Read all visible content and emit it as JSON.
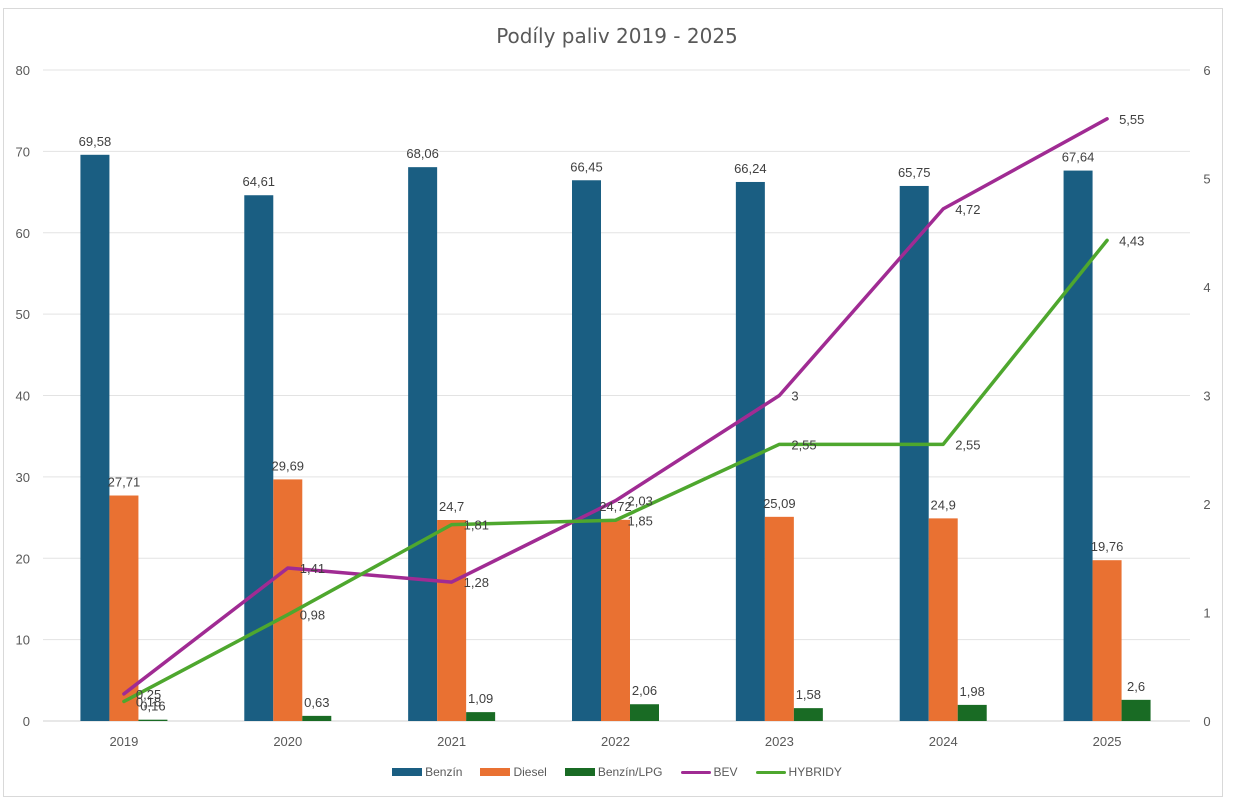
{
  "chart_data": {
    "type": "bar",
    "title": "Podíly paliv 2019 - 2025",
    "xlabel": "",
    "ylabel": "",
    "categories": [
      "2019",
      "2020",
      "2021",
      "2022",
      "2023",
      "2024",
      "2025"
    ],
    "y_left": {
      "min": 0,
      "max": 80,
      "ticks": [
        "0",
        "10",
        "20",
        "30",
        "40",
        "50",
        "60",
        "70",
        "80"
      ]
    },
    "y_right": {
      "min": 0,
      "max": 6,
      "ticks": [
        "0",
        "1",
        "2",
        "3",
        "4",
        "5",
        "6"
      ]
    },
    "grid": true,
    "legend_position": "bottom",
    "series": [
      {
        "name": "Benzín",
        "kind": "bar",
        "axis": "left",
        "color": "#1a5e82",
        "values": [
          69.58,
          64.61,
          68.06,
          66.45,
          66.24,
          65.75,
          67.64
        ],
        "labels": [
          "69,58",
          "64,61",
          "68,06",
          "66,45",
          "66,24",
          "65,75",
          "67,64"
        ]
      },
      {
        "name": "Diesel",
        "kind": "bar",
        "axis": "left",
        "color": "#e97132",
        "values": [
          27.71,
          29.69,
          24.7,
          24.72,
          25.09,
          24.9,
          19.76
        ],
        "labels": [
          "27,71",
          "29,69",
          "24,7",
          "24,72",
          "25,09",
          "24,9",
          "19,76"
        ]
      },
      {
        "name": "Benzín/LPG",
        "kind": "bar",
        "axis": "left",
        "color": "#196b24",
        "values": [
          0.16,
          0.63,
          1.09,
          2.06,
          1.58,
          1.98,
          2.6
        ],
        "labels": [
          "0,16",
          "0,63",
          "1,09",
          "2,06",
          "1,58",
          "1,98",
          "2,6"
        ]
      },
      {
        "name": "BEV",
        "kind": "line",
        "axis": "right",
        "color": "#a02b93",
        "values": [
          0.25,
          1.41,
          1.28,
          2.03,
          3,
          4.72,
          5.55
        ],
        "labels": [
          "0,25",
          "1,41",
          "1,28",
          "2,03",
          "3",
          "4,72",
          "5,55"
        ]
      },
      {
        "name": "HYBRIDY",
        "kind": "line",
        "axis": "right",
        "color": "#4ea72e",
        "values": [
          0.18,
          0.98,
          1.81,
          1.85,
          2.55,
          2.55,
          4.43
        ],
        "labels": [
          "0,18",
          "0,98",
          "1,81",
          "1,85",
          "2,55",
          "2,55",
          "4,43"
        ]
      }
    ]
  }
}
